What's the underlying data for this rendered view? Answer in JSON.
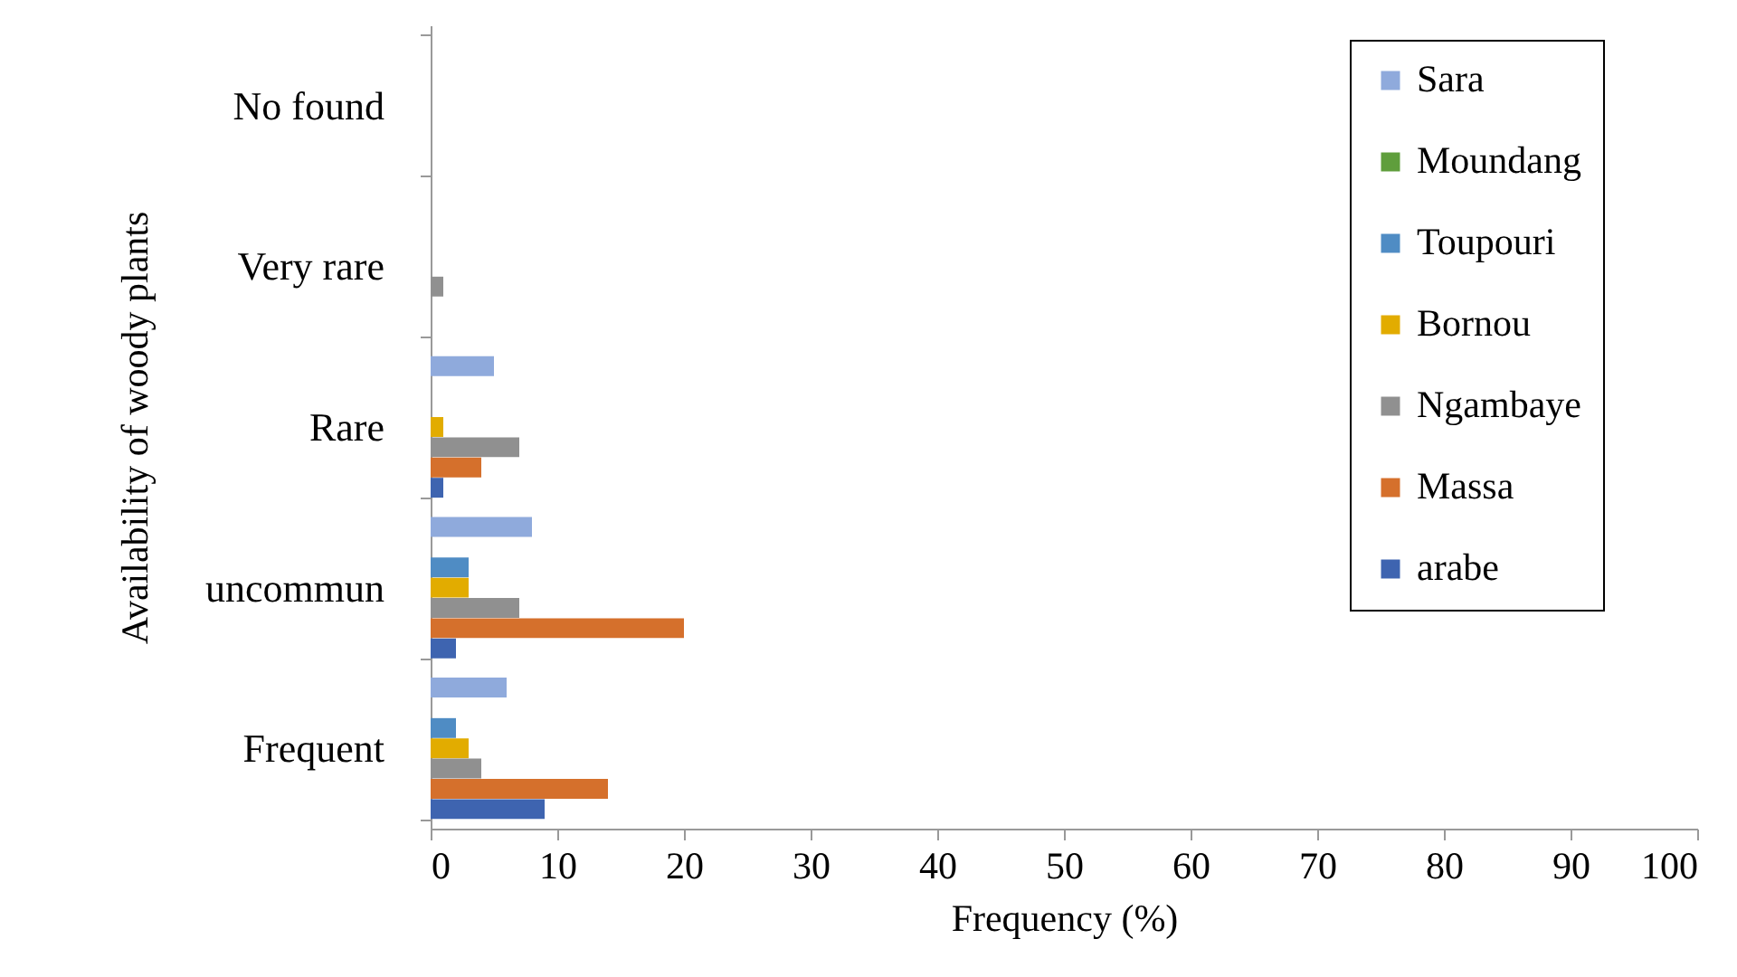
{
  "chart_data": {
    "type": "bar",
    "orientation": "horizontal",
    "xlabel": "Frequency (%)",
    "ylabel": "Availability of woody plants",
    "categories": [
      "No found",
      "Very rare",
      "Rare",
      "uncommun",
      "Frequent"
    ],
    "series": [
      {
        "name": "Sara",
        "color": "#8faadc",
        "values": [
          0,
          0,
          5,
          8,
          6
        ]
      },
      {
        "name": "Moundang",
        "color": "#5f9e3c",
        "values": [
          0,
          0,
          0,
          0,
          0
        ]
      },
      {
        "name": "Toupouri",
        "color": "#4f8cc4",
        "values": [
          0,
          0,
          0,
          3,
          2
        ]
      },
      {
        "name": "Bornou",
        "color": "#e2ac00",
        "values": [
          0,
          0,
          1,
          3,
          3
        ]
      },
      {
        "name": "Ngambaye",
        "color": "#909090",
        "values": [
          0,
          1,
          7,
          7,
          4
        ]
      },
      {
        "name": "Massa",
        "color": "#d5702c",
        "values": [
          0,
          0,
          4,
          20,
          14
        ]
      },
      {
        "name": "arabe",
        "color": "#3e64b0",
        "values": [
          0,
          0,
          1,
          2,
          9
        ]
      }
    ],
    "xlim": [
      0,
      100
    ],
    "xticks": [
      0,
      10,
      20,
      30,
      40,
      50,
      60,
      70,
      80,
      90,
      100
    ],
    "grid": false,
    "legend": "top right"
  }
}
